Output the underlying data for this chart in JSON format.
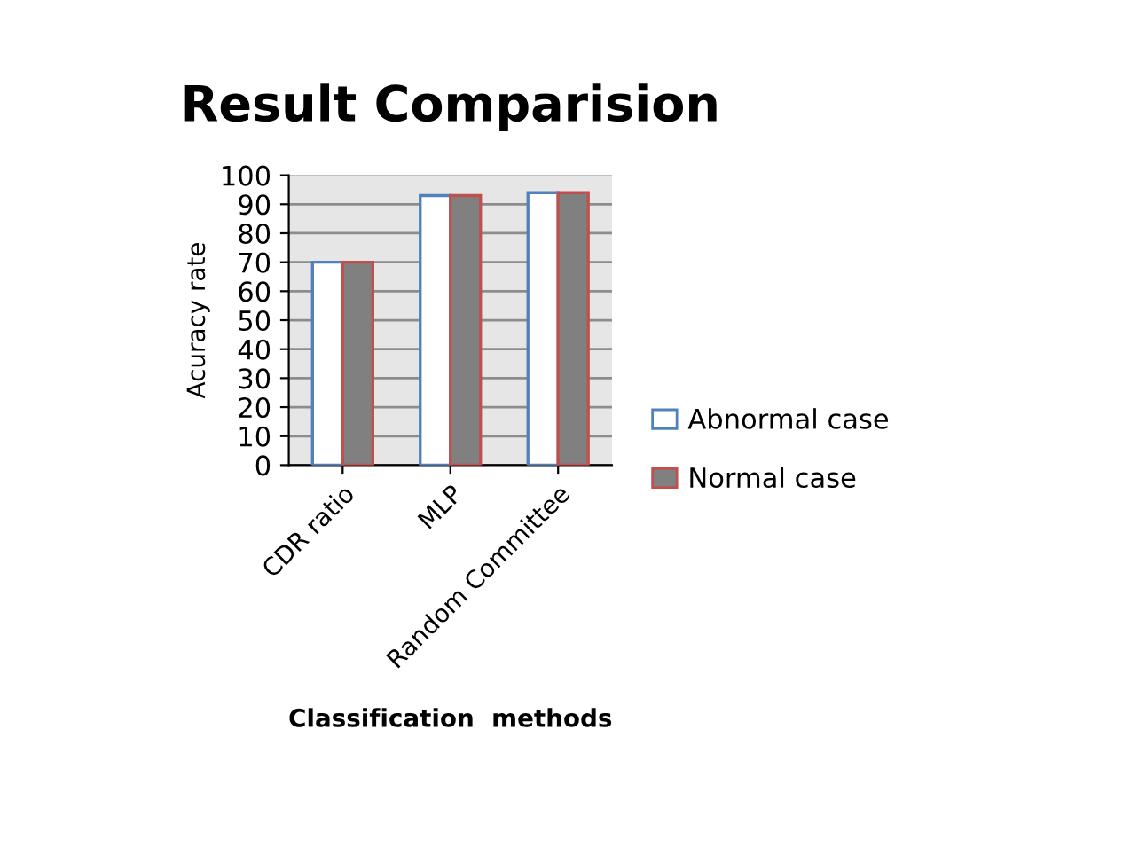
{
  "chart_data": {
    "type": "bar",
    "title": "Result Comparision",
    "xlabel": "Classification  methods",
    "ylabel": "Acuracy rate",
    "categories": [
      "CDR ratio",
      "MLP",
      "Random Committee"
    ],
    "series": [
      {
        "name": "Abnormal case",
        "color": "#ffffff",
        "values": [
          70,
          93,
          94
        ]
      },
      {
        "name": "Normal case",
        "color": "#808080",
        "values": [
          70,
          93,
          94
        ]
      }
    ],
    "ylim": [
      0,
      100
    ],
    "yticks": [
      0,
      10,
      20,
      30,
      40,
      50,
      60,
      70,
      80,
      90,
      100
    ],
    "grid": "y",
    "legend": "right"
  }
}
